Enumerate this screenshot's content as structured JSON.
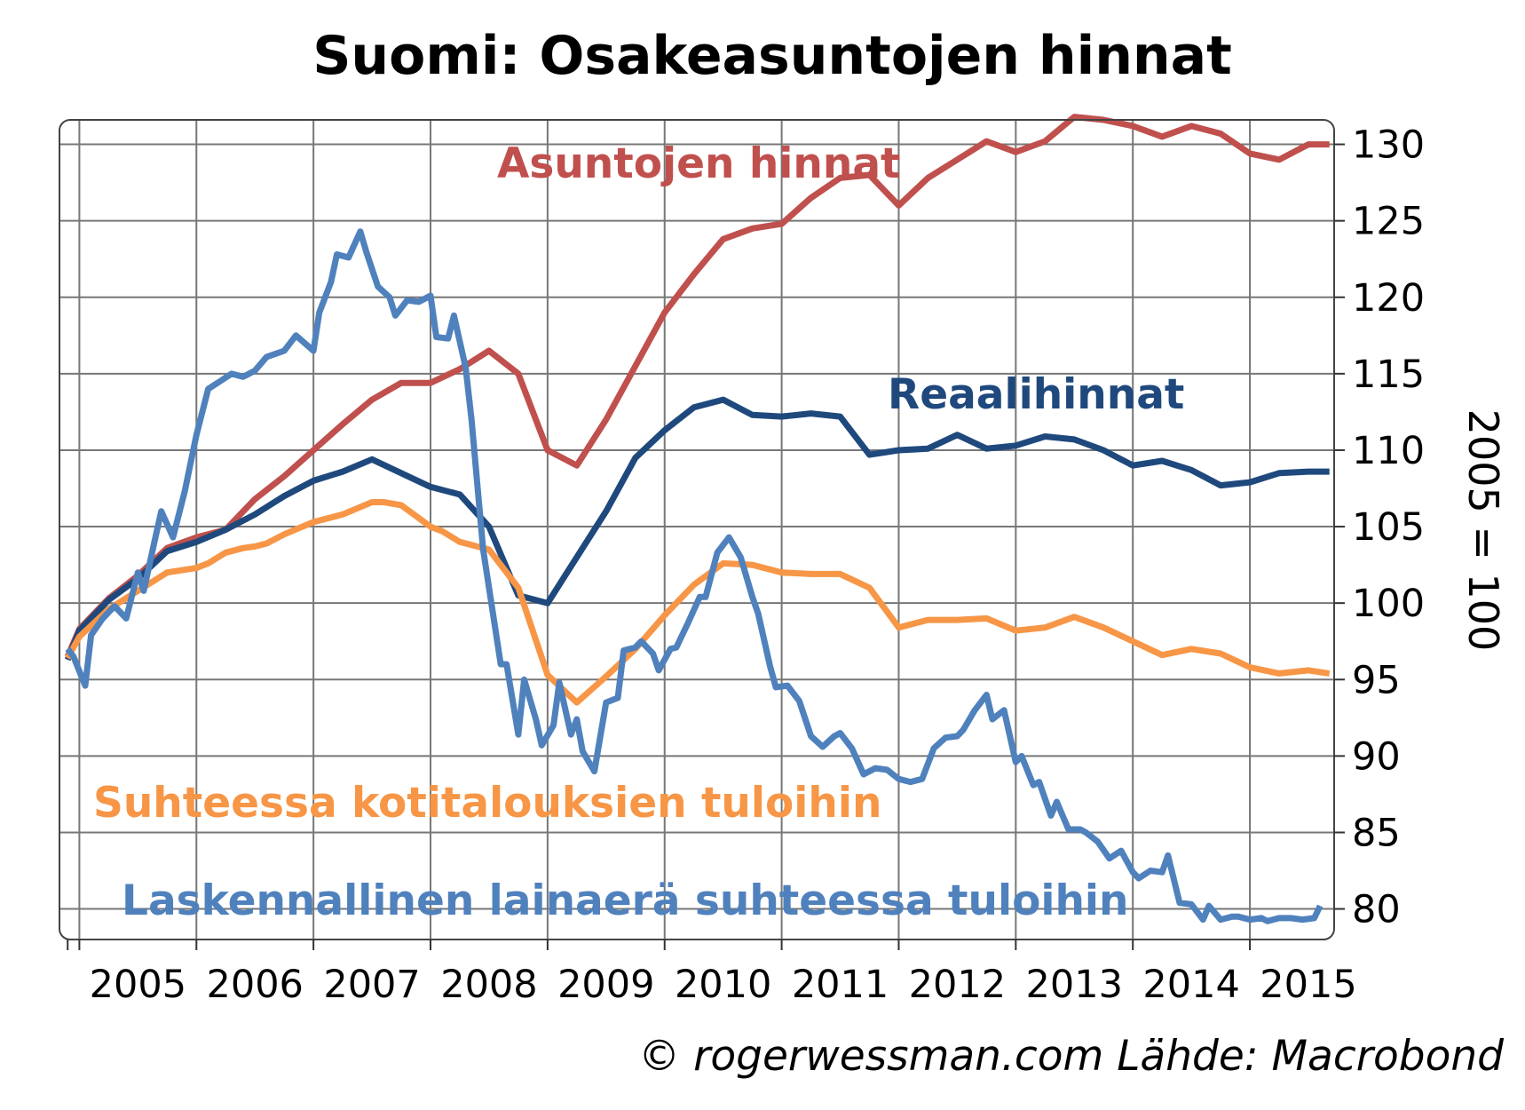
{
  "chart_data": {
    "type": "line",
    "title": "Suomi: Osakeasuntojen hinnat",
    "ylabel": "2005 = 100",
    "xlabel": "",
    "xlim": [
      2004.83,
      2015.72
    ],
    "ylim": [
      78,
      131.6
    ],
    "xticks": [
      2005,
      2006,
      2007,
      2008,
      2009,
      2010,
      2011,
      2012,
      2013,
      2014,
      2015
    ],
    "yticks": [
      80,
      85,
      90,
      95,
      100,
      105,
      110,
      115,
      120,
      125,
      130
    ],
    "grid": true,
    "legend": "inline labels",
    "source": "© rogerwessman.com Lähde: Macrobond",
    "series": [
      {
        "name": "Asuntojen hinnat",
        "color": "#c0504d",
        "x": [
          2004.9,
          2005.0,
          2005.25,
          2005.5,
          2005.75,
          2006.0,
          2006.25,
          2006.5,
          2006.75,
          2007.0,
          2007.25,
          2007.5,
          2007.75,
          2008.0,
          2008.25,
          2008.5,
          2008.75,
          2009.0,
          2009.25,
          2009.5,
          2009.75,
          2010.0,
          2010.25,
          2010.5,
          2010.75,
          2011.0,
          2011.25,
          2011.5,
          2011.75,
          2012.0,
          2012.25,
          2012.5,
          2012.75,
          2013.0,
          2013.25,
          2013.5,
          2013.75,
          2014.0,
          2014.25,
          2014.5,
          2014.75,
          2015.0,
          2015.25,
          2015.5,
          2015.68
        ],
        "values": [
          96.5,
          98.3,
          100.3,
          101.8,
          103.6,
          104.3,
          104.8,
          106.8,
          108.3,
          110.0,
          111.7,
          113.3,
          114.4,
          114.4,
          115.3,
          116.5,
          115.0,
          110.0,
          109.0,
          112.0,
          115.5,
          119.0,
          121.5,
          123.8,
          124.5,
          124.8,
          126.5,
          127.8,
          128.0,
          126.0,
          127.8,
          129.0,
          130.2,
          129.5,
          130.2,
          131.8,
          131.6,
          131.2,
          130.5,
          131.2,
          130.7,
          129.4,
          129.0,
          130.0,
          130.0
        ]
      },
      {
        "name": "Reaalihinnat",
        "color": "#1f497d",
        "x": [
          2004.9,
          2005.0,
          2005.25,
          2005.5,
          2005.75,
          2006.0,
          2006.25,
          2006.5,
          2006.75,
          2007.0,
          2007.25,
          2007.5,
          2007.75,
          2008.0,
          2008.25,
          2008.5,
          2008.75,
          2009.0,
          2009.25,
          2009.5,
          2009.75,
          2010.0,
          2010.25,
          2010.5,
          2010.75,
          2011.0,
          2011.25,
          2011.5,
          2011.75,
          2012.0,
          2012.25,
          2012.5,
          2012.75,
          2013.0,
          2013.25,
          2013.5,
          2013.75,
          2014.0,
          2014.25,
          2014.5,
          2014.75,
          2015.0,
          2015.25,
          2015.5,
          2015.68
        ],
        "values": [
          96.3,
          98.2,
          100.2,
          101.6,
          103.4,
          104.0,
          104.8,
          105.8,
          107.0,
          108.0,
          108.6,
          109.4,
          108.5,
          107.6,
          107.1,
          105.0,
          100.5,
          100.0,
          103.0,
          106.0,
          109.5,
          111.3,
          112.8,
          113.3,
          112.3,
          112.2,
          112.4,
          112.2,
          109.7,
          110.0,
          110.1,
          111.0,
          110.1,
          110.3,
          110.9,
          110.7,
          110.0,
          109.0,
          109.3,
          108.7,
          107.7,
          107.9,
          108.5,
          108.6,
          108.6
        ]
      },
      {
        "name": "Suhteessa kotitalouksien tuloihin",
        "color": "#f79646",
        "x": [
          2004.9,
          2005.0,
          2005.25,
          2005.5,
          2005.75,
          2006.0,
          2006.1,
          2006.25,
          2006.4,
          2006.5,
          2006.6,
          2006.75,
          2007.0,
          2007.25,
          2007.5,
          2007.6,
          2007.75,
          2008.0,
          2008.1,
          2008.25,
          2008.5,
          2008.75,
          2009.0,
          2009.25,
          2009.5,
          2009.75,
          2010.0,
          2010.25,
          2010.5,
          2010.75,
          2011.0,
          2011.25,
          2011.5,
          2011.75,
          2012.0,
          2012.25,
          2012.5,
          2012.75,
          2013.0,
          2013.25,
          2013.5,
          2013.75,
          2014.0,
          2014.25,
          2014.5,
          2014.75,
          2015.0,
          2015.25,
          2015.5,
          2015.68
        ],
        "values": [
          96.4,
          97.8,
          99.6,
          100.8,
          102.0,
          102.3,
          102.6,
          103.3,
          103.6,
          103.7,
          103.9,
          104.5,
          105.3,
          105.8,
          106.6,
          106.6,
          106.4,
          105.0,
          104.7,
          104.0,
          103.5,
          101.0,
          95.3,
          93.5,
          95.2,
          97.0,
          99.2,
          101.2,
          102.6,
          102.5,
          102.0,
          101.9,
          101.9,
          101.0,
          98.4,
          98.9,
          98.9,
          99.0,
          98.2,
          98.4,
          99.1,
          98.4,
          97.5,
          96.6,
          97.0,
          96.7,
          95.8,
          95.4,
          95.6,
          95.4
        ]
      },
      {
        "name": "Laskennallinen lainaerä suhteessa tuloihin",
        "color": "#4f81bd",
        "x": [
          2004.9,
          2004.95,
          2005.05,
          2005.1,
          2005.2,
          2005.3,
          2005.4,
          2005.5,
          2005.55,
          2005.65,
          2005.7,
          2005.8,
          2005.9,
          2006.0,
          2006.1,
          2006.2,
          2006.3,
          2006.4,
          2006.5,
          2006.6,
          2006.75,
          2006.85,
          2007.0,
          2007.05,
          2007.15,
          2007.2,
          2007.3,
          2007.4,
          2007.45,
          2007.55,
          2007.65,
          2007.7,
          2007.8,
          2007.9,
          2008.0,
          2008.05,
          2008.15,
          2008.2,
          2008.3,
          2008.35,
          2008.45,
          2008.5,
          2008.6,
          2008.65,
          2008.75,
          2008.8,
          2008.9,
          2008.95,
          2009.05,
          2009.1,
          2009.2,
          2009.25,
          2009.3,
          2009.4,
          2009.5,
          2009.6,
          2009.65,
          2009.75,
          2009.8,
          2009.9,
          2009.95,
          2010.05,
          2010.1,
          2010.2,
          2010.3,
          2010.35,
          2010.45,
          2010.55,
          2010.65,
          2010.75,
          2010.8,
          2010.9,
          2010.95,
          2011.05,
          2011.15,
          2011.25,
          2011.35,
          2011.45,
          2011.5,
          2011.6,
          2011.7,
          2011.8,
          2011.9,
          2012.0,
          2012.1,
          2012.2,
          2012.3,
          2012.4,
          2012.5,
          2012.55,
          2012.65,
          2012.75,
          2012.8,
          2012.9,
          2013.0,
          2013.05,
          2013.15,
          2013.2,
          2013.3,
          2013.35,
          2013.45,
          2013.55,
          2013.6,
          2013.7,
          2013.8,
          2013.9,
          2014.0,
          2014.05,
          2014.15,
          2014.25,
          2014.3,
          2014.4,
          2014.5,
          2014.6,
          2014.65,
          2014.75,
          2014.85,
          2014.9,
          2015.0,
          2015.1,
          2015.15,
          2015.25,
          2015.35,
          2015.45,
          2015.55,
          2015.6
        ],
        "values": [
          97.0,
          96.5,
          94.6,
          97.9,
          99.0,
          99.8,
          99.0,
          102.0,
          100.8,
          104.3,
          106.0,
          104.3,
          107.3,
          111.0,
          114.0,
          114.5,
          115.0,
          114.8,
          115.2,
          116.1,
          116.5,
          117.5,
          116.5,
          119.0,
          121.0,
          122.8,
          122.6,
          124.3,
          123.0,
          120.7,
          120.0,
          118.8,
          119.8,
          119.7,
          120.1,
          117.4,
          117.3,
          118.8,
          115.4,
          112.0,
          103.5,
          101.0,
          96.0,
          96.0,
          91.4,
          95.0,
          92.4,
          90.7,
          92.0,
          94.8,
          91.4,
          92.4,
          90.3,
          89.0,
          93.5,
          93.8,
          96.9,
          97.1,
          97.5,
          96.7,
          95.6,
          97.0,
          97.1,
          98.7,
          100.4,
          100.4,
          103.3,
          104.3,
          103.0,
          100.4,
          99.3,
          95.9,
          94.5,
          94.6,
          93.6,
          91.3,
          90.6,
          91.3,
          91.5,
          90.5,
          88.8,
          89.2,
          89.1,
          88.5,
          88.3,
          88.5,
          90.5,
          91.2,
          91.3,
          91.7,
          93.0,
          94.0,
          92.4,
          93.0,
          89.6,
          90.0,
          88.1,
          88.3,
          86.1,
          87.0,
          85.2,
          85.2,
          85.0,
          84.4,
          83.3,
          83.8,
          82.4,
          82.0,
          82.5,
          82.4,
          83.5,
          80.4,
          80.3,
          79.3,
          80.2,
          79.3,
          79.5,
          79.5,
          79.3,
          79.4,
          79.2,
          79.4,
          79.4,
          79.3,
          79.4,
          80.2
        ]
      }
    ],
    "annotations": [
      {
        "text": "Asuntojen hinnat",
        "series": 0
      },
      {
        "text": "Reaalihinnat",
        "series": 1
      },
      {
        "text": "Suhteessa kotitalouksien tuloihin",
        "series": 2
      },
      {
        "text": "Laskennallinen lainaerä suhteessa tuloihin",
        "series": 3
      }
    ]
  }
}
